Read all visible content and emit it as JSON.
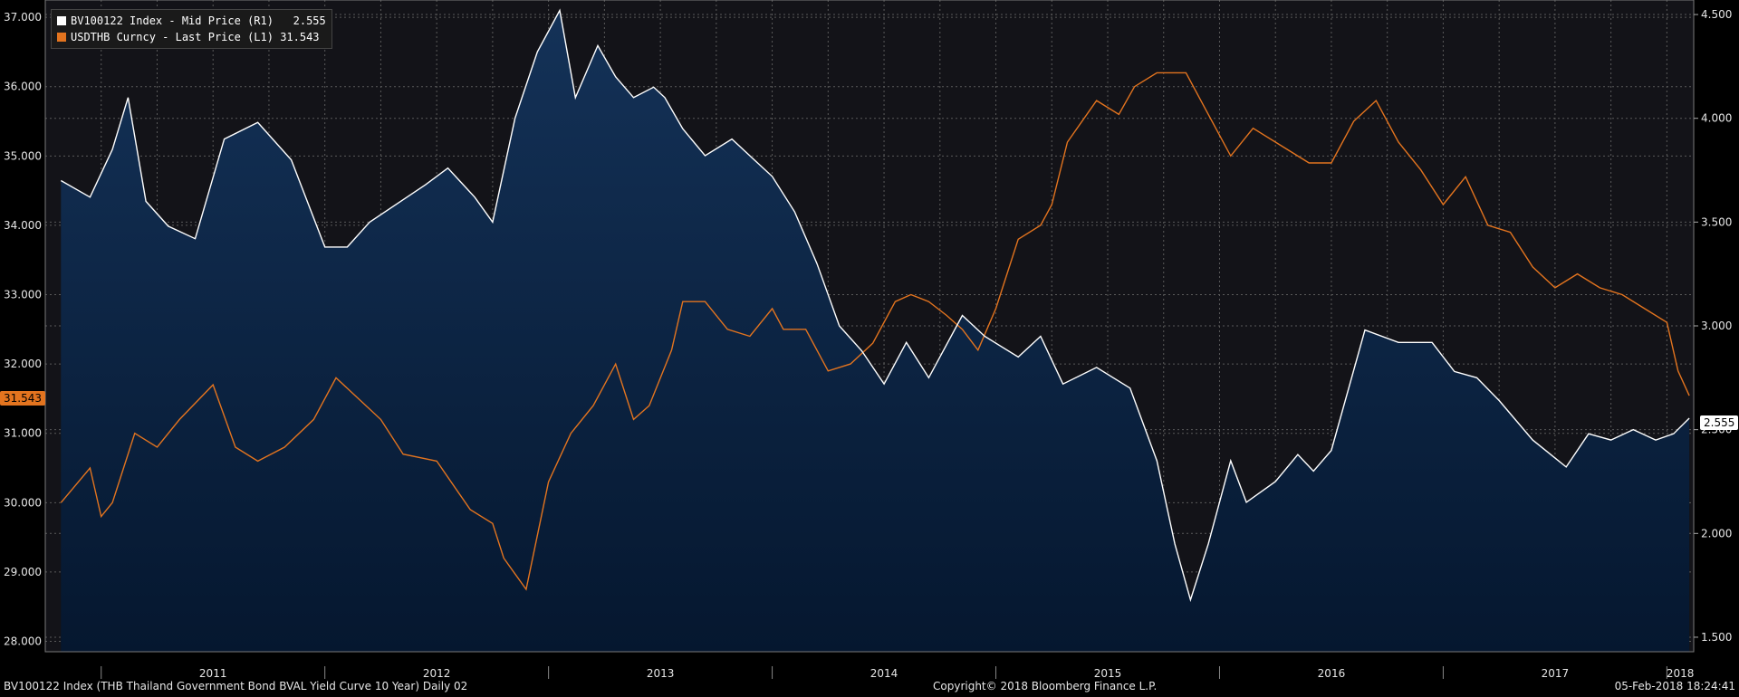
{
  "legend": {
    "series1": "BV100122 Index - Mid Price (R1)   2.555",
    "series2": "USDTHB Curncy - Last Price (L1) 31.543"
  },
  "footer": {
    "left": "BV100122 Index (THB Thailand Government Bond BVAL Yield Curve 10 Year)  Daily 02",
    "center": "Copyright© 2018 Bloomberg Finance L.P.",
    "right": "05-Feb-2018 18:24:41"
  },
  "last_values": {
    "left_tag": "31.543",
    "right_tag": "2.555"
  },
  "colors": {
    "bond": "#ffffff",
    "bond_fill_top": "#143258",
    "bond_fill_bottom": "#05172f",
    "usdthb": "#e3741f",
    "background": "#000000",
    "plot_background": "#131318"
  },
  "chart_data": {
    "type": "line",
    "x_tick_labels": [
      "2011",
      "2012",
      "2013",
      "2014",
      "2015",
      "2016",
      "2017",
      "2018"
    ],
    "left_axis": {
      "ticks": [
        "28.000",
        "29.000",
        "30.000",
        "31.000",
        "32.000",
        "33.000",
        "34.000",
        "35.000",
        "36.000",
        "37.000"
      ],
      "ylim": [
        27.85,
        37.25
      ]
    },
    "right_axis": {
      "ticks": [
        "1.500",
        "2.000",
        "2.500",
        "3.000",
        "3.500",
        "4.000",
        "4.500"
      ],
      "ylim": [
        1.43,
        4.57
      ]
    },
    "grid": true,
    "legend_position": "top-left",
    "series": [
      {
        "name": "BV100122 Index - Mid Price (R1)",
        "axis": "right",
        "style": "area",
        "x": [
          2010.82,
          2010.95,
          2011.05,
          2011.12,
          2011.2,
          2011.3,
          2011.42,
          2011.55,
          2011.7,
          2011.85,
          2012.0,
          2012.1,
          2012.2,
          2012.45,
          2012.55,
          2012.67,
          2012.75,
          2012.85,
          2012.95,
          2013.05,
          2013.12,
          2013.22,
          2013.3,
          2013.38,
          2013.47,
          2013.52,
          2013.6,
          2013.7,
          2013.82,
          2013.92,
          2014.0,
          2014.1,
          2014.2,
          2014.3,
          2014.4,
          2014.5,
          2014.6,
          2014.7,
          2014.85,
          2014.95,
          2015.1,
          2015.2,
          2015.3,
          2015.45,
          2015.6,
          2015.72,
          2015.8,
          2015.87,
          2015.95,
          2016.05,
          2016.12,
          2016.25,
          2016.35,
          2016.42,
          2016.5,
          2016.65,
          2016.8,
          2016.95,
          2017.05,
          2017.15,
          2017.25,
          2017.4,
          2017.55,
          2017.65,
          2017.75,
          2017.85,
          2017.95,
          2018.03,
          2018.1
        ],
        "y": [
          3.7,
          3.62,
          3.85,
          4.1,
          3.6,
          3.48,
          3.42,
          3.9,
          3.98,
          3.8,
          3.38,
          3.38,
          3.5,
          3.68,
          3.76,
          3.62,
          3.5,
          4.0,
          4.32,
          4.52,
          4.1,
          4.35,
          4.2,
          4.1,
          4.15,
          4.1,
          3.95,
          3.82,
          3.9,
          3.8,
          3.72,
          3.55,
          3.3,
          3.0,
          2.88,
          2.72,
          2.92,
          2.75,
          3.05,
          2.95,
          2.85,
          2.95,
          2.72,
          2.8,
          2.7,
          2.35,
          1.95,
          1.68,
          1.95,
          2.35,
          2.15,
          2.25,
          2.38,
          2.3,
          2.4,
          2.98,
          2.92,
          2.92,
          2.78,
          2.75,
          2.64,
          2.45,
          2.32,
          2.48,
          2.45,
          2.5,
          2.45,
          2.48,
          2.555
        ]
      },
      {
        "name": "USDTHB Curncy - Last Price (L1)",
        "axis": "left",
        "style": "line",
        "x": [
          2010.82,
          2010.95,
          2011.0,
          2011.05,
          2011.15,
          2011.25,
          2011.35,
          2011.5,
          2011.6,
          2011.7,
          2011.82,
          2011.95,
          2012.05,
          2012.15,
          2012.25,
          2012.35,
          2012.5,
          2012.65,
          2012.75,
          2012.8,
          2012.9,
          2013.0,
          2013.1,
          2013.2,
          2013.3,
          2013.38,
          2013.45,
          2013.55,
          2013.6,
          2013.7,
          2013.8,
          2013.9,
          2014.0,
          2014.05,
          2014.15,
          2014.25,
          2014.35,
          2014.45,
          2014.55,
          2014.62,
          2014.7,
          2014.78,
          2014.85,
          2014.92,
          2015.0,
          2015.1,
          2015.2,
          2015.25,
          2015.32,
          2015.45,
          2015.55,
          2015.62,
          2015.72,
          2015.85,
          2015.95,
          2016.05,
          2016.15,
          2016.25,
          2016.4,
          2016.5,
          2016.6,
          2016.7,
          2016.8,
          2016.9,
          2017.0,
          2017.1,
          2017.2,
          2017.3,
          2017.4,
          2017.5,
          2017.6,
          2017.7,
          2017.8,
          2017.9,
          2018.0,
          2018.05,
          2018.1
        ],
        "y": [
          30.0,
          30.5,
          29.8,
          30.0,
          31.0,
          30.8,
          31.2,
          31.7,
          30.8,
          30.6,
          30.8,
          31.2,
          31.8,
          31.5,
          31.2,
          30.7,
          30.6,
          29.9,
          29.7,
          29.2,
          28.75,
          30.3,
          31.0,
          31.4,
          32.0,
          31.2,
          31.4,
          32.2,
          32.9,
          32.9,
          32.5,
          32.4,
          32.8,
          32.5,
          32.5,
          31.9,
          32.0,
          32.3,
          32.9,
          33.0,
          32.9,
          32.7,
          32.5,
          32.2,
          32.8,
          33.8,
          34.0,
          34.3,
          35.2,
          35.8,
          35.6,
          36.0,
          36.2,
          36.2,
          35.6,
          35.0,
          35.4,
          35.2,
          34.9,
          34.9,
          35.5,
          35.8,
          35.2,
          34.8,
          34.3,
          34.7,
          34.0,
          33.9,
          33.4,
          33.1,
          33.3,
          33.1,
          33.0,
          32.8,
          32.6,
          31.9,
          31.543
        ]
      }
    ]
  }
}
